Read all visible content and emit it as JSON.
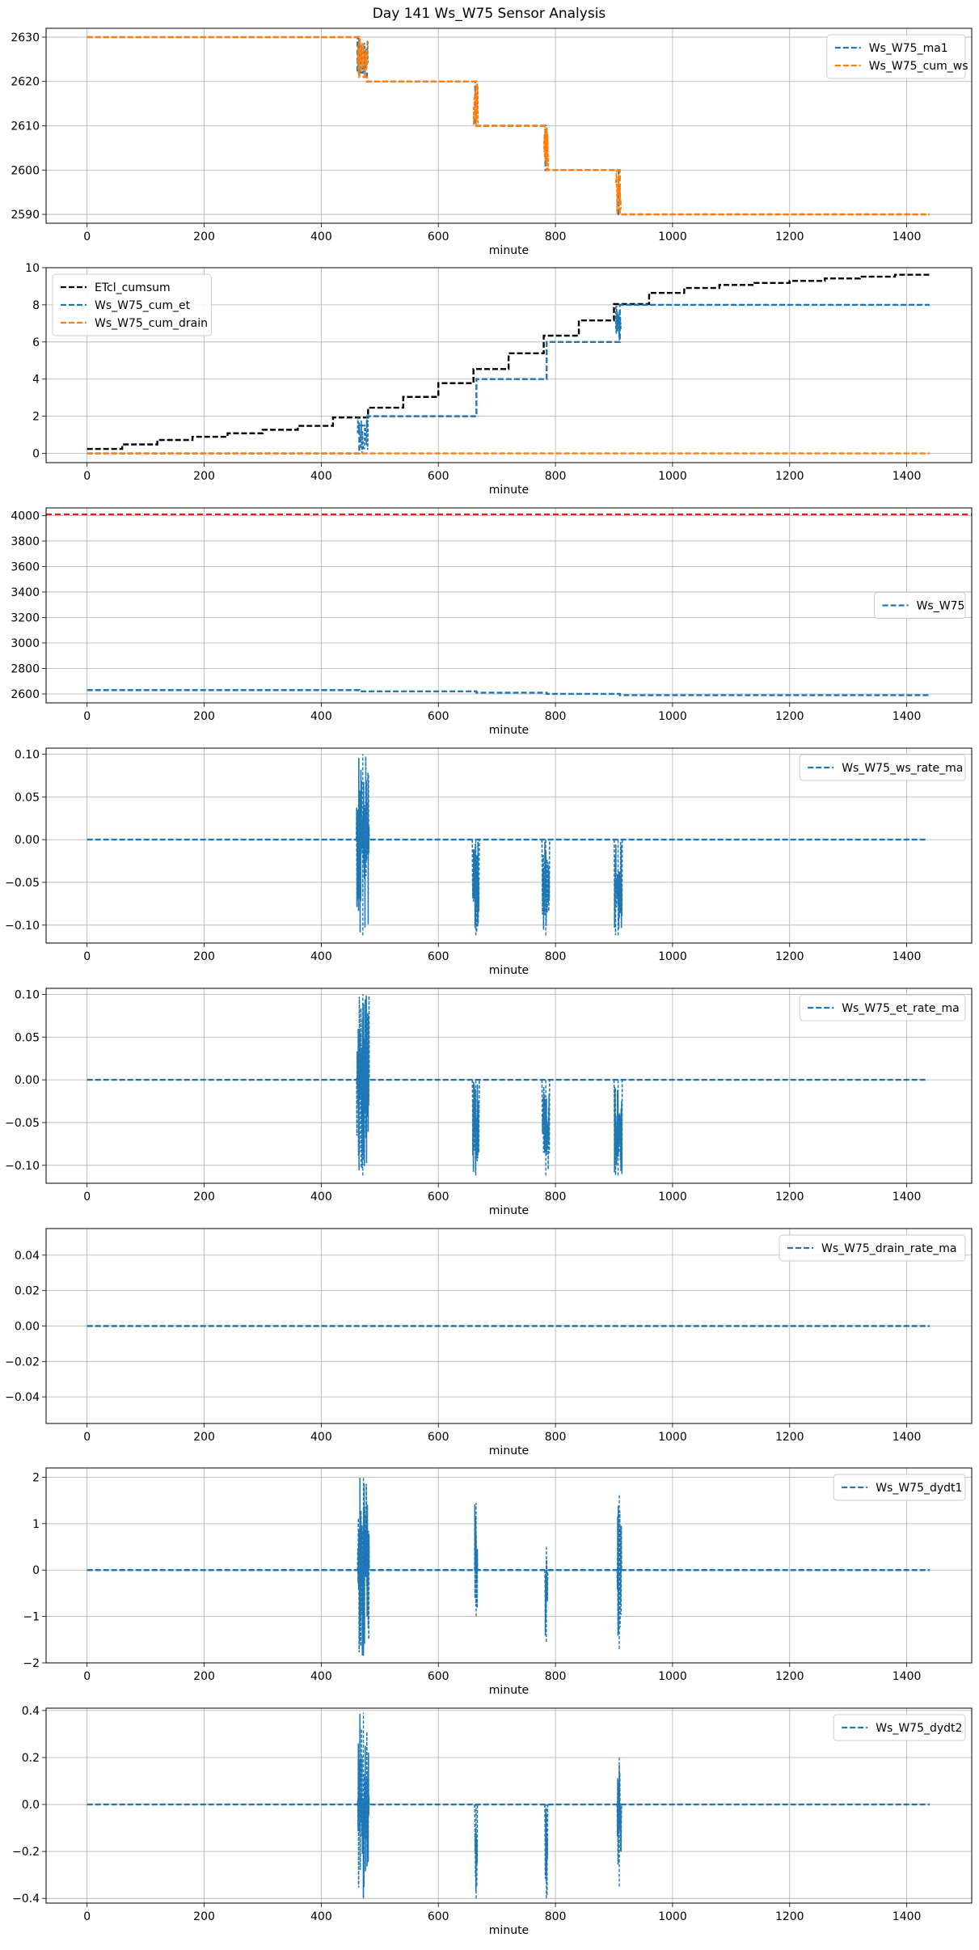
{
  "figure_title": "Day 141 Ws_W75 Sensor Analysis",
  "colors": {
    "blue": "#1f77b4",
    "orange": "#ff7f0e",
    "black": "#000000",
    "red": "#ff0000",
    "grid": "#b0b0b0"
  },
  "chart_data": [
    {
      "type": "line",
      "title": "",
      "xlabel": "minute",
      "ylabel": "",
      "xlim": [
        -70,
        1511
      ],
      "ylim": [
        2588,
        2632
      ],
      "xticks": [
        0,
        200,
        400,
        600,
        800,
        1000,
        1200,
        1400
      ],
      "yticks": [
        2590,
        2600,
        2610,
        2620,
        2630
      ],
      "grid": true,
      "legend_position": "top-right",
      "series": [
        {
          "name": "Ws_W75_ma1",
          "color": "#1f77b4",
          "style": "dashed",
          "x": [
            0,
            462,
            462,
            478,
            478,
            663,
            663,
            783,
            783,
            908,
            908,
            1439
          ],
          "y": [
            2630,
            2630,
            2622,
            2622,
            2620,
            2620,
            2610,
            2610,
            2600,
            2600,
            2590,
            2590
          ],
          "noise": [
            {
              "x0": 462,
              "x1": 480,
              "lo": 2620,
              "hi": 2630
            }
          ]
        },
        {
          "name": "Ws_W75_cum_ws",
          "color": "#ff7f0e",
          "style": "dashed",
          "x": [
            0,
            465,
            465,
            478,
            478,
            665,
            665,
            785,
            785,
            910,
            910,
            1439
          ],
          "y": [
            2630,
            2630,
            2621,
            2621,
            2620,
            2620,
            2610,
            2610,
            2600,
            2600,
            2590,
            2590
          ],
          "noise": [
            {
              "x0": 462,
              "x1": 480,
              "lo": 2620,
              "hi": 2630
            },
            {
              "x0": 660,
              "x1": 668,
              "lo": 2610,
              "hi": 2620
            },
            {
              "x0": 780,
              "x1": 788,
              "lo": 2600,
              "hi": 2610
            },
            {
              "x0": 903,
              "x1": 912,
              "lo": 2590,
              "hi": 2600
            }
          ]
        }
      ]
    },
    {
      "type": "line",
      "title": "",
      "xlabel": "minute",
      "ylabel": "",
      "xlim": [
        -70,
        1511
      ],
      "ylim": [
        -0.5,
        10
      ],
      "xticks": [
        0,
        200,
        400,
        600,
        800,
        1000,
        1200,
        1400
      ],
      "yticks": [
        0,
        2,
        4,
        6,
        8,
        10
      ],
      "grid": true,
      "legend_position": "top-left",
      "series": [
        {
          "name": "ETcl_cumsum",
          "color": "#000000",
          "style": "dashed",
          "x": [
            0,
            60,
            60,
            120,
            120,
            180,
            180,
            240,
            240,
            300,
            300,
            360,
            360,
            420,
            420,
            480,
            480,
            540,
            540,
            600,
            600,
            660,
            660,
            720,
            720,
            780,
            780,
            840,
            840,
            900,
            900,
            960,
            960,
            1020,
            1020,
            1080,
            1080,
            1140,
            1140,
            1200,
            1200,
            1260,
            1260,
            1320,
            1320,
            1380,
            1380,
            1439
          ],
          "y": [
            0.24,
            0.24,
            0.48,
            0.48,
            0.72,
            0.72,
            0.89,
            0.89,
            1.08,
            1.08,
            1.27,
            1.27,
            1.48,
            1.48,
            1.93,
            1.93,
            2.46,
            2.46,
            3.04,
            3.04,
            3.78,
            3.78,
            4.54,
            4.54,
            5.39,
            5.39,
            6.34,
            6.34,
            7.16,
            7.16,
            8.04,
            8.04,
            8.64,
            8.64,
            8.91,
            8.91,
            9.07,
            9.07,
            9.18,
            9.18,
            9.29,
            9.29,
            9.42,
            9.42,
            9.52,
            9.52,
            9.62,
            9.62
          ]
        },
        {
          "name": "Ws_W75_cum_et",
          "color": "#1f77b4",
          "style": "dashed",
          "x": [
            0,
            465,
            465,
            478,
            478,
            665,
            665,
            785,
            785,
            910,
            910,
            1439
          ],
          "y": [
            0,
            0,
            1.5,
            1.5,
            2,
            2,
            4,
            4,
            6,
            6,
            8,
            8
          ],
          "noise": [
            {
              "x0": 462,
              "x1": 480,
              "lo": 0,
              "hi": 2
            },
            {
              "x0": 903,
              "x1": 912,
              "lo": 6,
              "hi": 8
            }
          ]
        },
        {
          "name": "Ws_W75_cum_drain",
          "color": "#ff7f0e",
          "style": "dashed",
          "x": [
            0,
            1439
          ],
          "y": [
            0,
            0
          ]
        }
      ]
    },
    {
      "type": "line",
      "title": "",
      "xlabel": "minute",
      "ylabel": "",
      "xlim": [
        -70,
        1511
      ],
      "ylim": [
        2530,
        4060
      ],
      "xticks": [
        0,
        200,
        400,
        600,
        800,
        1000,
        1200,
        1400
      ],
      "yticks": [
        2600,
        2800,
        3000,
        3200,
        3400,
        3600,
        3800,
        4000
      ],
      "grid": true,
      "legend_position": "center-right",
      "hline": {
        "y": 4010,
        "color": "#ff0000",
        "style": "dashed"
      },
      "series": [
        {
          "name": "Ws_W75",
          "color": "#1f77b4",
          "style": "dashed",
          "x": [
            0,
            465,
            465,
            665,
            665,
            785,
            785,
            910,
            910,
            1439
          ],
          "y": [
            2630,
            2630,
            2620,
            2620,
            2610,
            2610,
            2600,
            2600,
            2590,
            2590
          ]
        }
      ]
    },
    {
      "type": "line",
      "title": "",
      "xlabel": "minute",
      "ylabel": "",
      "xlim": [
        -70,
        1511
      ],
      "ylim": [
        -0.121,
        0.107
      ],
      "xticks": [
        0,
        200,
        400,
        600,
        800,
        1000,
        1200,
        1400
      ],
      "yticks": [
        -0.1,
        -0.05,
        0.0,
        0.05,
        0.1
      ],
      "yticklabels": [
        "−0.10",
        "−0.05",
        "0.00",
        "0.05",
        "0.10"
      ],
      "grid": true,
      "legend_position": "top-right",
      "series": [
        {
          "name": "Ws_W75_ws_rate_ma",
          "color": "#1f77b4",
          "style": "dashed",
          "x": [
            0,
            1435
          ],
          "y": [
            0,
            0
          ],
          "bursts": [
            {
              "x0": 460,
              "x1": 482,
              "lo": -0.112,
              "hi": 0.1
            },
            {
              "x0": 658,
              "x1": 670,
              "lo": -0.112,
              "hi": 0
            },
            {
              "x0": 777,
              "x1": 790,
              "lo": -0.112,
              "hi": 0
            },
            {
              "x0": 900,
              "x1": 914,
              "lo": -0.112,
              "hi": 0
            }
          ]
        }
      ]
    },
    {
      "type": "line",
      "title": "",
      "xlabel": "minute",
      "ylabel": "",
      "xlim": [
        -70,
        1511
      ],
      "ylim": [
        -0.121,
        0.107
      ],
      "xticks": [
        0,
        200,
        400,
        600,
        800,
        1000,
        1200,
        1400
      ],
      "yticks": [
        -0.1,
        -0.05,
        0.0,
        0.05,
        0.1
      ],
      "yticklabels": [
        "−0.10",
        "−0.05",
        "0.00",
        "0.05",
        "0.10"
      ],
      "grid": true,
      "legend_position": "top-right",
      "series": [
        {
          "name": "Ws_W75_et_rate_ma",
          "color": "#1f77b4",
          "style": "dashed",
          "x": [
            0,
            1435
          ],
          "y": [
            0,
            0
          ],
          "bursts": [
            {
              "x0": 460,
              "x1": 482,
              "lo": -0.112,
              "hi": 0.1
            },
            {
              "x0": 658,
              "x1": 670,
              "lo": -0.112,
              "hi": 0
            },
            {
              "x0": 777,
              "x1": 790,
              "lo": -0.112,
              "hi": 0
            },
            {
              "x0": 900,
              "x1": 914,
              "lo": -0.112,
              "hi": 0
            }
          ]
        }
      ]
    },
    {
      "type": "line",
      "title": "",
      "xlabel": "minute",
      "ylabel": "",
      "xlim": [
        -70,
        1511
      ],
      "ylim": [
        -0.055,
        0.055
      ],
      "xticks": [
        0,
        200,
        400,
        600,
        800,
        1000,
        1200,
        1400
      ],
      "yticks": [
        -0.04,
        -0.02,
        0.0,
        0.02,
        0.04
      ],
      "yticklabels": [
        "−0.04",
        "−0.02",
        "0.00",
        "0.02",
        "0.04"
      ],
      "grid": true,
      "legend_position": "top-right",
      "series": [
        {
          "name": "Ws_W75_drain_rate_ma",
          "color": "#1f77b4",
          "style": "dashed",
          "x": [
            0,
            1439
          ],
          "y": [
            0,
            0
          ]
        }
      ]
    },
    {
      "type": "line",
      "title": "",
      "xlabel": "minute",
      "ylabel": "",
      "xlim": [
        -70,
        1511
      ],
      "ylim": [
        -2.0,
        2.2
      ],
      "xticks": [
        0,
        200,
        400,
        600,
        800,
        1000,
        1200,
        1400
      ],
      "yticks": [
        -2,
        -1,
        0,
        1,
        2
      ],
      "yticklabels": [
        "−2",
        "−1",
        "0",
        "1",
        "2"
      ],
      "grid": true,
      "legend_position": "top-right",
      "series": [
        {
          "name": "Ws_W75_dydt1",
          "color": "#1f77b4",
          "style": "dashed",
          "x": [
            0,
            1439
          ],
          "y": [
            0,
            0
          ],
          "bursts": [
            {
              "x0": 462,
              "x1": 482,
              "lo": -1.85,
              "hi": 2.0
            },
            {
              "x0": 662,
              "x1": 667,
              "lo": -1.0,
              "hi": 1.45
            },
            {
              "x0": 782,
              "x1": 787,
              "lo": -1.55,
              "hi": 0.5
            },
            {
              "x0": 905,
              "x1": 913,
              "lo": -1.7,
              "hi": 1.65
            }
          ]
        }
      ]
    },
    {
      "type": "line",
      "title": "",
      "xlabel": "minute",
      "ylabel": "",
      "xlim": [
        -70,
        1511
      ],
      "ylim": [
        -0.42,
        0.41
      ],
      "xticks": [
        0,
        200,
        400,
        600,
        800,
        1000,
        1200,
        1400
      ],
      "yticks": [
        -0.4,
        -0.2,
        0.0,
        0.2,
        0.4
      ],
      "yticklabels": [
        "−0.4",
        "−0.2",
        "0.0",
        "0.2",
        "0.4"
      ],
      "grid": true,
      "legend_position": "top-right",
      "series": [
        {
          "name": "Ws_W75_dydt2",
          "color": "#1f77b4",
          "style": "dashed",
          "x": [
            0,
            1439
          ],
          "y": [
            0,
            0
          ],
          "bursts": [
            {
              "x0": 462,
              "x1": 482,
              "lo": -0.4,
              "hi": 0.39
            },
            {
              "x0": 662,
              "x1": 667,
              "lo": -0.4,
              "hi": 0
            },
            {
              "x0": 782,
              "x1": 787,
              "lo": -0.4,
              "hi": 0
            },
            {
              "x0": 905,
              "x1": 913,
              "lo": -0.35,
              "hi": 0.2
            }
          ]
        }
      ]
    }
  ]
}
